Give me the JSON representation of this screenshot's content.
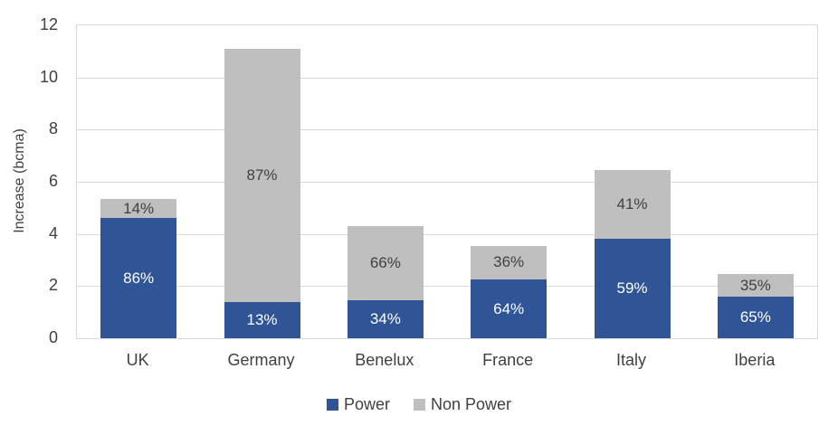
{
  "chart_data": {
    "type": "bar",
    "stacked": true,
    "title": "",
    "categories": [
      "UK",
      "Germany",
      "Benelux",
      "France",
      "Italy",
      "Iberia"
    ],
    "series": [
      {
        "name": "Power",
        "color": "#2F5596",
        "label_color": "#FFFFFF",
        "values": [
          4.6,
          1.4,
          1.45,
          2.25,
          3.8,
          1.6
        ],
        "labels": [
          "86%",
          "13%",
          "34%",
          "64%",
          "59%",
          "65%"
        ]
      },
      {
        "name": "Non Power",
        "color": "#BFBFBF",
        "label_color": "#404040",
        "values": [
          0.75,
          9.7,
          2.85,
          1.3,
          2.65,
          0.85
        ],
        "labels": [
          "14%",
          "87%",
          "66%",
          "36%",
          "41%",
          "35%"
        ]
      }
    ],
    "totals": [
      5.35,
      11.1,
      4.3,
      3.55,
      6.45,
      2.45
    ],
    "xlabel": "",
    "ylabel": "Increase (bcma)",
    "ylim": [
      0,
      12
    ],
    "yticks": [
      0,
      2,
      4,
      6,
      8,
      10,
      12
    ],
    "grid": true,
    "gridline_color": "#D9D9D9",
    "axis_text_color": "#404040",
    "legend_position": "bottom",
    "legend_entries": [
      "Power",
      "Non Power"
    ]
  }
}
